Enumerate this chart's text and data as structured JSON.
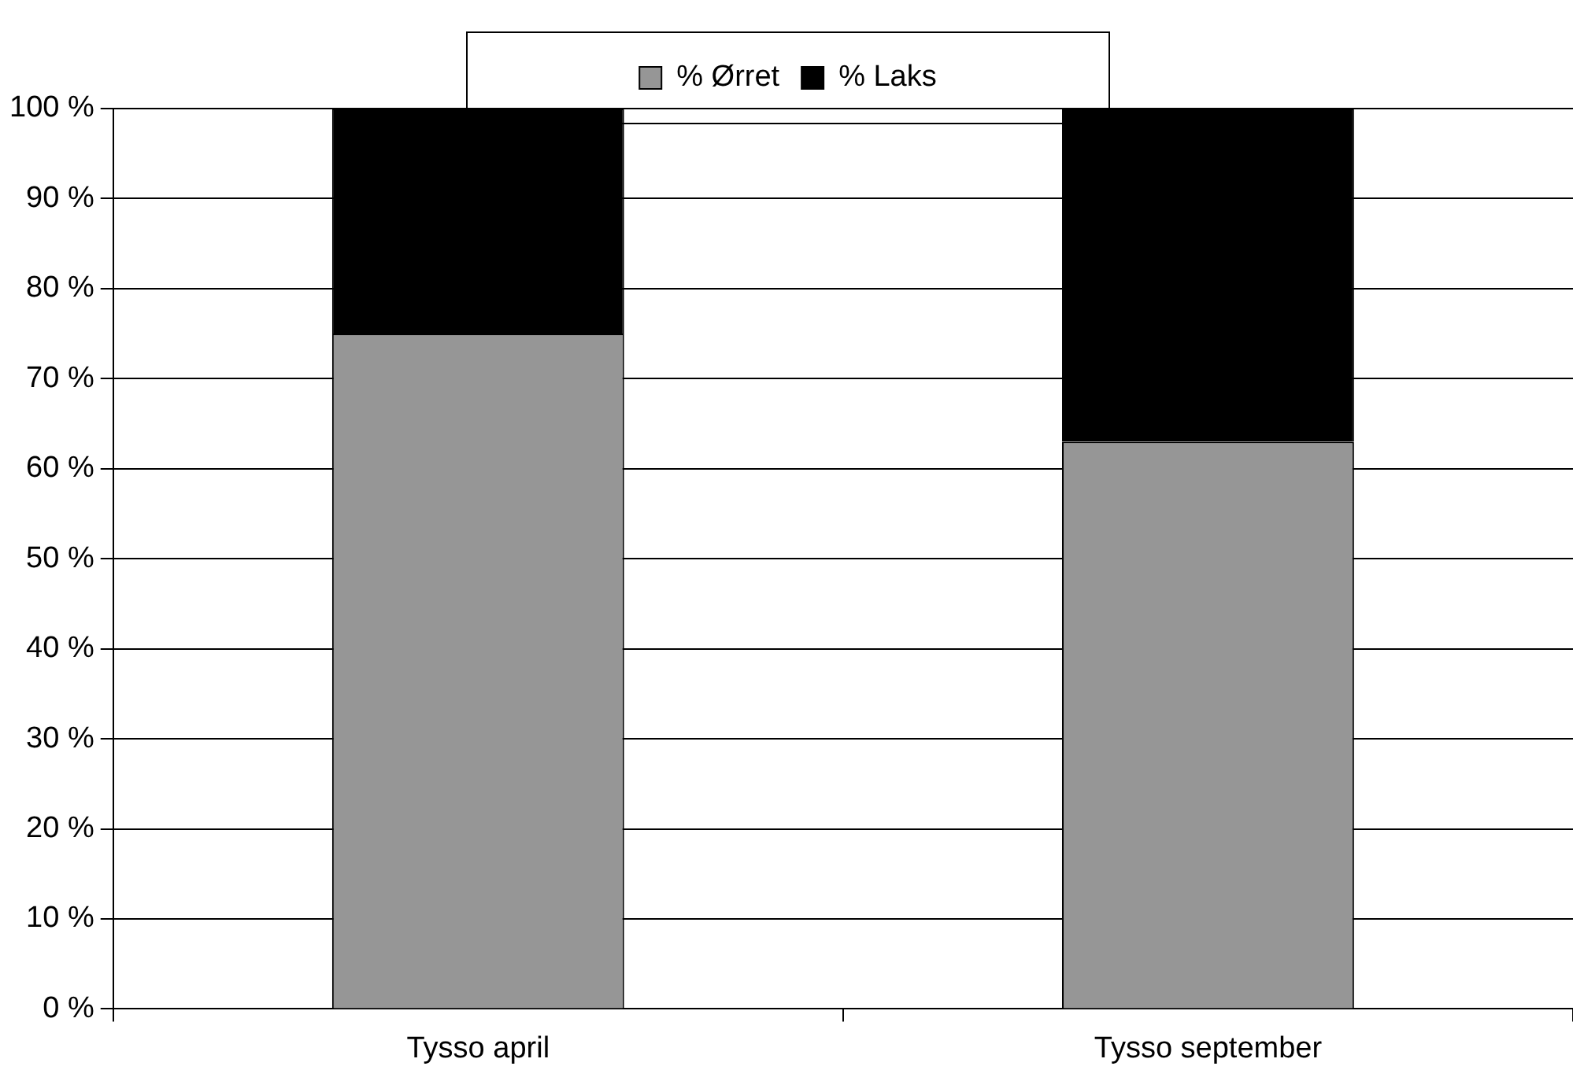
{
  "chart_data": {
    "type": "bar",
    "stacked": true,
    "categories": [
      "Tysso april",
      "Tysso september"
    ],
    "series": [
      {
        "name": "% Ørret",
        "color": "#969696",
        "values": [
          75,
          63
        ]
      },
      {
        "name": "% Laks",
        "color": "#000000",
        "values": [
          25,
          37
        ]
      }
    ],
    "ylim": [
      0,
      100
    ],
    "yticks": [
      {
        "value": 0,
        "label": "0 %"
      },
      {
        "value": 10,
        "label": "10 %"
      },
      {
        "value": 20,
        "label": "20 %"
      },
      {
        "value": 30,
        "label": "30 %"
      },
      {
        "value": 40,
        "label": "40 %"
      },
      {
        "value": 50,
        "label": "50 %"
      },
      {
        "value": 60,
        "label": "60 %"
      },
      {
        "value": 70,
        "label": "70 %"
      },
      {
        "value": 80,
        "label": "80 %"
      },
      {
        "value": 90,
        "label": "90 %"
      },
      {
        "value": 100,
        "label": "100 %"
      }
    ],
    "grid": "y",
    "legend": "top"
  }
}
